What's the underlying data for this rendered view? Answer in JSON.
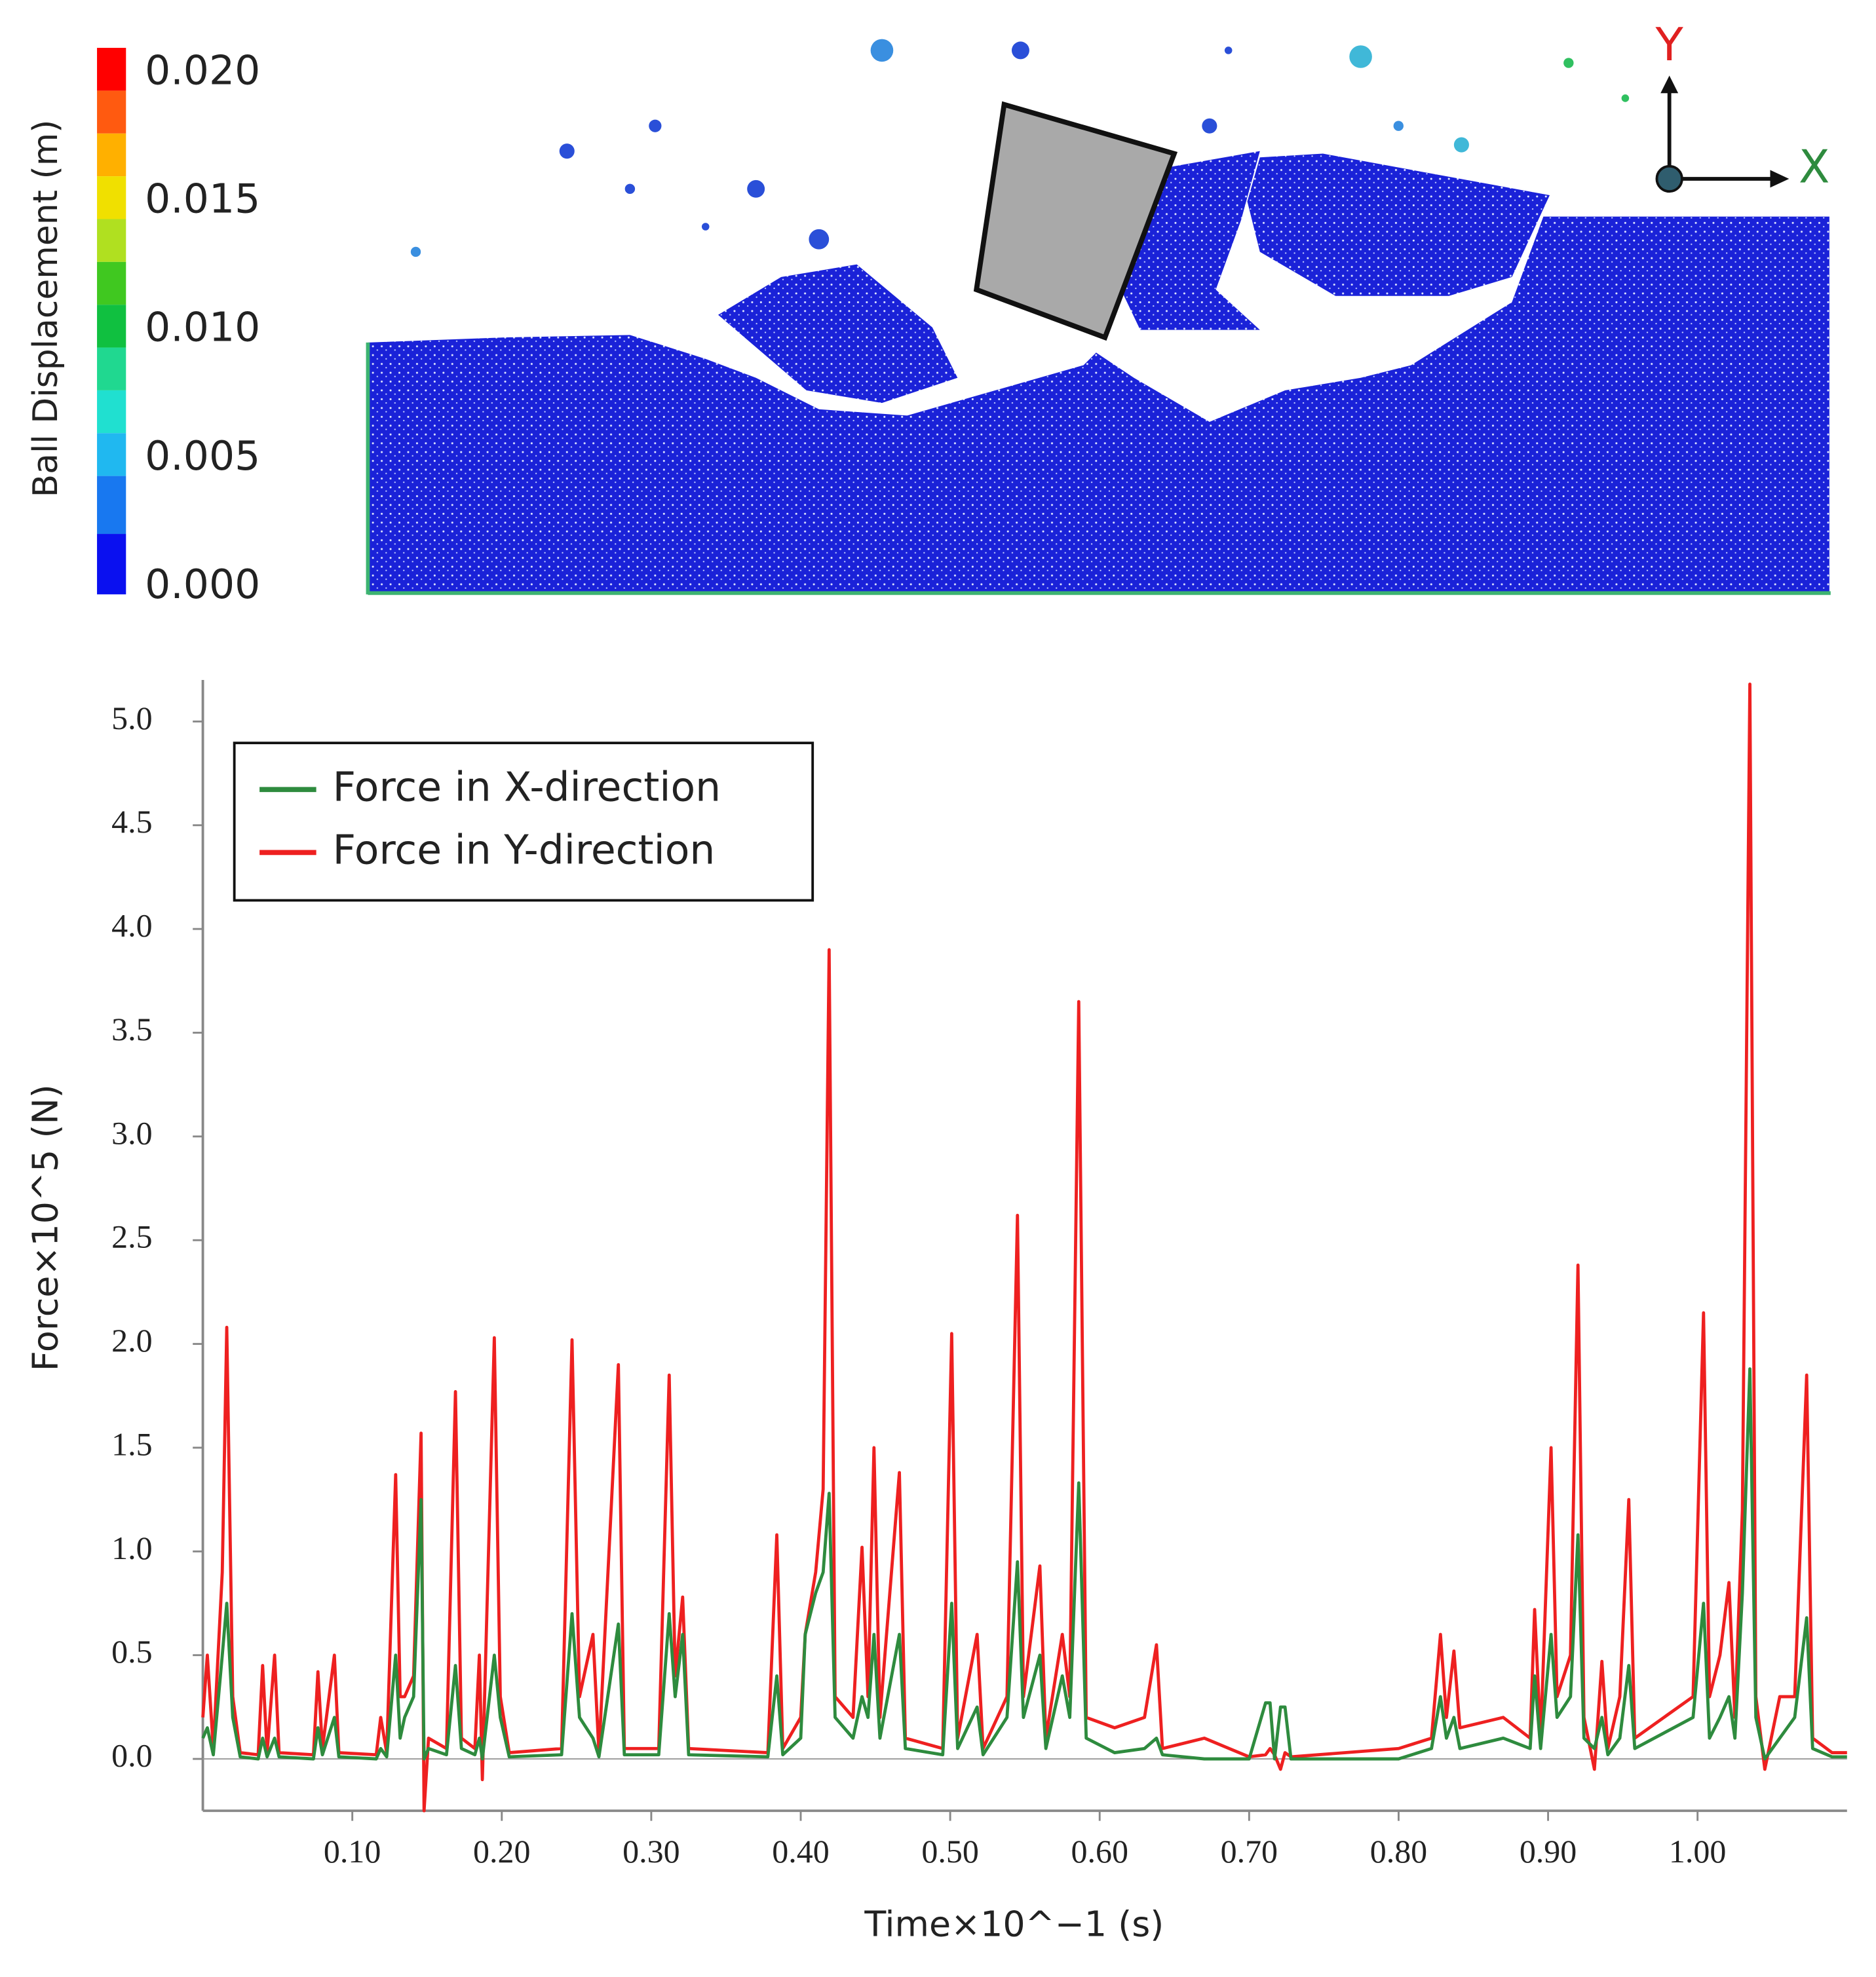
{
  "simulation": {
    "colorbar": {
      "label": "Ball Displacement (m)",
      "lim": [
        0,
        0.02
      ],
      "ticks": [
        {
          "value": 0.02,
          "label": "0.020"
        },
        {
          "value": 0.015,
          "label": "0.015"
        },
        {
          "value": 0.01,
          "label": "0.010"
        },
        {
          "value": 0.005,
          "label": "0.005"
        },
        {
          "value": 0,
          "label": "0.000"
        }
      ]
    },
    "axis_x": "X",
    "axis_y": "Y"
  },
  "chart_data": {
    "type": "line",
    "x_label": "Time×10^−1 (s)",
    "y_label": "Force×10^5 (N)",
    "xlim": [
      0,
      1.1
    ],
    "ylim": [
      -0.25,
      5.2
    ],
    "xticks": [
      {
        "value": 0.1,
        "label": "0.10"
      },
      {
        "value": 0.2,
        "label": "0.20"
      },
      {
        "value": 0.3,
        "label": "0.30"
      },
      {
        "value": 0.4,
        "label": "0.40"
      },
      {
        "value": 0.5,
        "label": "0.50"
      },
      {
        "value": 0.6,
        "label": "0.60"
      },
      {
        "value": 0.7,
        "label": "0.70"
      },
      {
        "value": 0.8,
        "label": "0.80"
      },
      {
        "value": 0.9,
        "label": "0.90"
      },
      {
        "value": 1.0,
        "label": "1.00"
      }
    ],
    "yticks": [
      {
        "value": 0,
        "label": "0.0"
      },
      0.5,
      {
        "value": 1,
        "label": "1.0"
      },
      1.5,
      {
        "value": 2,
        "label": "2.0"
      },
      2.5,
      {
        "value": 3,
        "label": "3.0"
      },
      3.5,
      {
        "value": 4,
        "label": "4.0"
      },
      4.5,
      {
        "value": 5,
        "label": "5.0"
      }
    ],
    "grid": false,
    "legend": "upper left",
    "x": [
      0.0,
      0.003,
      0.007,
      0.013,
      0.016,
      0.02,
      0.025,
      0.037,
      0.04,
      0.043,
      0.048,
      0.051,
      0.074,
      0.077,
      0.08,
      0.088,
      0.091,
      0.116,
      0.119,
      0.123,
      0.129,
      0.132,
      0.135,
      0.141,
      0.146,
      0.148,
      0.151,
      0.163,
      0.169,
      0.173,
      0.182,
      0.185,
      0.187,
      0.195,
      0.199,
      0.205,
      0.24,
      0.247,
      0.252,
      0.261,
      0.265,
      0.278,
      0.282,
      0.305,
      0.312,
      0.316,
      0.321,
      0.325,
      0.378,
      0.384,
      0.388,
      0.4,
      0.403,
      0.41,
      0.415,
      0.419,
      0.423,
      0.435,
      0.441,
      0.445,
      0.449,
      0.453,
      0.466,
      0.47,
      0.495,
      0.501,
      0.505,
      0.518,
      0.522,
      0.538,
      0.545,
      0.549,
      0.56,
      0.564,
      0.575,
      0.58,
      0.586,
      0.591,
      0.61,
      0.63,
      0.638,
      0.642,
      0.67,
      0.7,
      0.711,
      0.714,
      0.717,
      0.721,
      0.724,
      0.728,
      0.8,
      0.822,
      0.828,
      0.832,
      0.837,
      0.841,
      0.87,
      0.888,
      0.891,
      0.895,
      0.902,
      0.906,
      0.915,
      0.92,
      0.924,
      0.931,
      0.936,
      0.94,
      0.948,
      0.954,
      0.958,
      0.997,
      1.004,
      1.008,
      1.015,
      1.021,
      1.025,
      1.03,
      1.035,
      1.039,
      1.045,
      1.055,
      1.065,
      1.073,
      1.077,
      1.09,
      1.1
    ],
    "series": [
      {
        "name": "Force in X-direction",
        "color": "#2e8b3e",
        "values": [
          0.1,
          0.15,
          0.02,
          0.5,
          0.75,
          0.2,
          0.01,
          0.0,
          0.1,
          0.01,
          0.1,
          0.01,
          0.0,
          0.15,
          0.02,
          0.2,
          0.01,
          0.0,
          0.05,
          0.01,
          0.5,
          0.1,
          0.2,
          0.3,
          1.25,
          0.0,
          0.05,
          0.02,
          0.45,
          0.05,
          0.02,
          0.1,
          0.0,
          0.5,
          0.2,
          0.01,
          0.02,
          0.7,
          0.2,
          0.1,
          0.01,
          0.65,
          0.02,
          0.02,
          0.7,
          0.3,
          0.6,
          0.02,
          0.01,
          0.4,
          0.02,
          0.1,
          0.6,
          0.8,
          0.9,
          1.28,
          0.2,
          0.1,
          0.3,
          0.2,
          0.6,
          0.1,
          0.6,
          0.05,
          0.02,
          0.75,
          0.05,
          0.25,
          0.02,
          0.2,
          0.95,
          0.2,
          0.5,
          0.05,
          0.4,
          0.2,
          1.33,
          0.1,
          0.03,
          0.05,
          0.1,
          0.02,
          0.0,
          0.0,
          0.27,
          0.27,
          0.0,
          0.25,
          0.25,
          0.0,
          0.0,
          0.05,
          0.3,
          0.1,
          0.2,
          0.05,
          0.1,
          0.05,
          0.4,
          0.05,
          0.6,
          0.2,
          0.3,
          1.08,
          0.1,
          0.05,
          0.2,
          0.02,
          0.1,
          0.45,
          0.05,
          0.2,
          0.75,
          0.1,
          0.2,
          0.3,
          0.1,
          0.8,
          1.88,
          0.2,
          0.0,
          0.1,
          0.2,
          0.68,
          0.05,
          0.01,
          0.01
        ]
      },
      {
        "name": "Force in Y-direction",
        "color": "#ee2020",
        "values": [
          0.2,
          0.5,
          0.05,
          0.9,
          2.08,
          0.3,
          0.03,
          0.02,
          0.45,
          0.03,
          0.5,
          0.03,
          0.02,
          0.42,
          0.05,
          0.5,
          0.03,
          0.02,
          0.2,
          0.03,
          1.37,
          0.3,
          0.3,
          0.4,
          1.57,
          -0.25,
          0.1,
          0.05,
          1.77,
          0.1,
          0.05,
          0.5,
          -0.1,
          2.03,
          0.3,
          0.03,
          0.05,
          2.02,
          0.3,
          0.6,
          0.03,
          1.9,
          0.05,
          0.05,
          1.85,
          0.4,
          0.78,
          0.05,
          0.03,
          1.08,
          0.05,
          0.2,
          0.6,
          0.9,
          1.3,
          3.9,
          0.3,
          0.2,
          1.02,
          0.3,
          1.5,
          0.2,
          1.38,
          0.1,
          0.05,
          2.05,
          0.1,
          0.6,
          0.05,
          0.3,
          2.62,
          0.3,
          0.93,
          0.1,
          0.6,
          0.3,
          3.65,
          0.2,
          0.15,
          0.2,
          0.55,
          0.05,
          0.1,
          0.01,
          0.02,
          0.05,
          0.02,
          -0.05,
          0.03,
          0.01,
          0.05,
          0.1,
          0.6,
          0.2,
          0.52,
          0.15,
          0.2,
          0.1,
          0.72,
          0.1,
          1.5,
          0.3,
          0.5,
          2.38,
          0.2,
          -0.05,
          0.47,
          0.05,
          0.3,
          1.25,
          0.1,
          0.3,
          2.15,
          0.3,
          0.5,
          0.85,
          0.2,
          1.2,
          5.18,
          0.3,
          -0.05,
          0.3,
          0.3,
          1.85,
          0.1,
          0.03,
          0.03
        ]
      }
    ]
  }
}
